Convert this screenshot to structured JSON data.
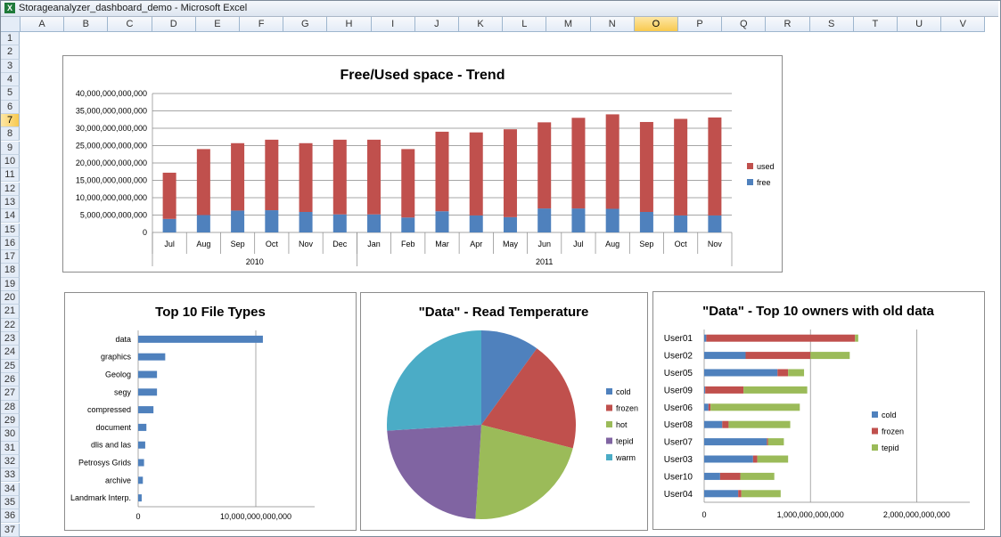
{
  "window": {
    "title": "Storageanalyzer_dashboard_demo - Microsoft Excel"
  },
  "grid": {
    "columns": [
      "A",
      "B",
      "C",
      "D",
      "E",
      "F",
      "G",
      "H",
      "I",
      "J",
      "K",
      "L",
      "M",
      "N",
      "O",
      "P",
      "Q",
      "R",
      "S",
      "T",
      "U",
      "V"
    ],
    "selected_column": "O",
    "rows": [
      "1",
      "2",
      "3",
      "4",
      "5",
      "6",
      "7",
      "8",
      "9",
      "10",
      "11",
      "12",
      "13",
      "14",
      "15",
      "16",
      "17",
      "18",
      "19",
      "20",
      "21",
      "22",
      "23",
      "24",
      "25",
      "26",
      "27",
      "28",
      "29",
      "30",
      "31",
      "32",
      "33",
      "34",
      "35",
      "36",
      "37"
    ],
    "selected_row": "7"
  },
  "colors": {
    "blue": "#4f81bd",
    "red": "#c0504d",
    "green": "#9bbb59",
    "purple": "#8064a2",
    "cyan": "#4bacc6"
  },
  "chart_data": [
    {
      "type": "bar",
      "stacked": true,
      "title": "Free/Used space - Trend",
      "categories": [
        "Jul",
        "Aug",
        "Sep",
        "Oct",
        "Nov",
        "Dec",
        "Jan",
        "Feb",
        "Mar",
        "Apr",
        "May",
        "Jun",
        "Jul",
        "Aug",
        "Sep",
        "Oct",
        "Nov"
      ],
      "year_groups": [
        {
          "label": "2010",
          "count": 6
        },
        {
          "label": "2011",
          "count": 11
        }
      ],
      "series": [
        {
          "name": "free",
          "color": "#4f81bd",
          "values": [
            3900000000000.0,
            5000000000000.0,
            6300000000000.0,
            6400000000000.0,
            5900000000000.0,
            5200000000000.0,
            5200000000000.0,
            4300000000000.0,
            6100000000000.0,
            4900000000000.0,
            4400000000000.0,
            6900000000000.0,
            6900000000000.0,
            6800000000000.0,
            5900000000000.0,
            4900000000000.0,
            4900000000000.0
          ]
        },
        {
          "name": "used",
          "color": "#c0504d",
          "values": [
            13300000000000.0,
            19000000000000.0,
            19400000000000.0,
            20300000000000.0,
            19800000000000.0,
            21500000000000.0,
            21500000000000.0,
            19700000000000.0,
            22900000000000.0,
            23900000000000.0,
            25300000000000.0,
            24800000000000.0,
            26100000000000.0,
            27200000000000.0,
            25900000000000.0,
            27800000000000.0,
            28200000000000.0
          ]
        }
      ],
      "ylim": [
        0,
        40000000000000
      ],
      "yticks": [
        "0",
        "5,000,000,000,000",
        "10,000,000,000,000",
        "15,000,000,000,000",
        "20,000,000,000,000",
        "25,000,000,000,000",
        "30,000,000,000,000",
        "35,000,000,000,000",
        "40,000,000,000,000"
      ],
      "legend": [
        "used",
        "free"
      ],
      "legend_position": "right",
      "grid": true
    },
    {
      "type": "bar",
      "orientation": "horizontal",
      "title": "Top 10 File Types",
      "categories": [
        "data",
        "graphics",
        "Geolog",
        "segy",
        "compressed",
        "document",
        "dlis and las",
        "Petrosys Grids",
        "archive",
        "Landmark Interp."
      ],
      "values": [
        10600000000000,
        2300000000000,
        1600000000000,
        1600000000000,
        1300000000000,
        700000000000,
        600000000000,
        500000000000,
        400000000000,
        300000000000
      ],
      "xlim": [
        0,
        15000000000000
      ],
      "xticks": [
        "0",
        "10,000,000,000,000"
      ],
      "color": "#4f81bd",
      "grid": true
    },
    {
      "type": "pie",
      "title": "\"Data\" - Read Temperature",
      "labels": [
        "cold",
        "frozen",
        "hot",
        "tepid",
        "warm"
      ],
      "values": [
        10,
        19,
        22,
        23,
        26
      ],
      "colors": [
        "#4f81bd",
        "#c0504d",
        "#9bbb59",
        "#8064a2",
        "#4bacc6"
      ],
      "legend_position": "right"
    },
    {
      "type": "bar",
      "orientation": "horizontal",
      "stacked": true,
      "title": "\"Data\" - Top 10 owners with old data",
      "categories": [
        "User01",
        "User02",
        "User05",
        "User09",
        "User06",
        "User08",
        "User07",
        "User03",
        "User10",
        "User04"
      ],
      "series": [
        {
          "name": "cold",
          "color": "#4f81bd",
          "values": [
            20000000000,
            390000000000,
            690000000000,
            10000000000,
            40000000000,
            170000000000,
            590000000000,
            460000000000,
            150000000000,
            320000000000
          ]
        },
        {
          "name": "frozen",
          "color": "#c0504d",
          "values": [
            1400000000000,
            610000000000,
            100000000000,
            360000000000,
            20000000000,
            60000000000,
            10000000000,
            40000000000,
            190000000000,
            30000000000
          ]
        },
        {
          "name": "tepid",
          "color": "#9bbb59",
          "values": [
            30000000000,
            370000000000,
            150000000000,
            600000000000,
            840000000000,
            580000000000,
            150000000000,
            290000000000,
            320000000000,
            370000000000
          ]
        }
      ],
      "xlim": [
        0,
        2500000000000
      ],
      "xticks": [
        "0",
        "1,000,000,000,000",
        "2,000,000,000,000"
      ],
      "legend": [
        "cold",
        "frozen",
        "tepid"
      ],
      "legend_position": "right",
      "grid": true
    }
  ]
}
